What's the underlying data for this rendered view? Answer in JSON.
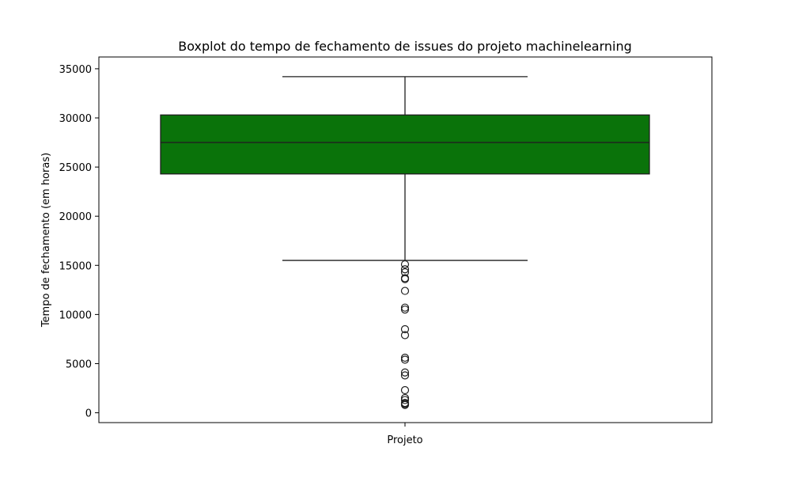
{
  "chart_data": {
    "type": "boxplot",
    "title": "Boxplot do tempo de fechamento de issues do projeto machinelearning",
    "xlabel": "",
    "ylabel": "Tempo de fechamento (em horas)",
    "categories": [
      "Projeto"
    ],
    "ylim": [
      -1000,
      36200
    ],
    "yticks": [
      0,
      5000,
      10000,
      15000,
      20000,
      25000,
      30000,
      35000
    ],
    "ytick_labels": [
      "0",
      "5000",
      "10000",
      "15000",
      "20000",
      "25000",
      "30000",
      "35000"
    ],
    "grid": false,
    "legend": false,
    "box": {
      "color": "#0a730a",
      "q1": 24300,
      "median": 27500,
      "q3": 30300,
      "whisker_low": 15500,
      "whisker_high": 34200
    },
    "outliers": [
      15100,
      14600,
      14300,
      13700,
      13600,
      12400,
      10700,
      10500,
      8500,
      7900,
      5600,
      5400,
      4100,
      3800,
      2300,
      1500,
      1300,
      1000,
      900,
      800
    ]
  }
}
